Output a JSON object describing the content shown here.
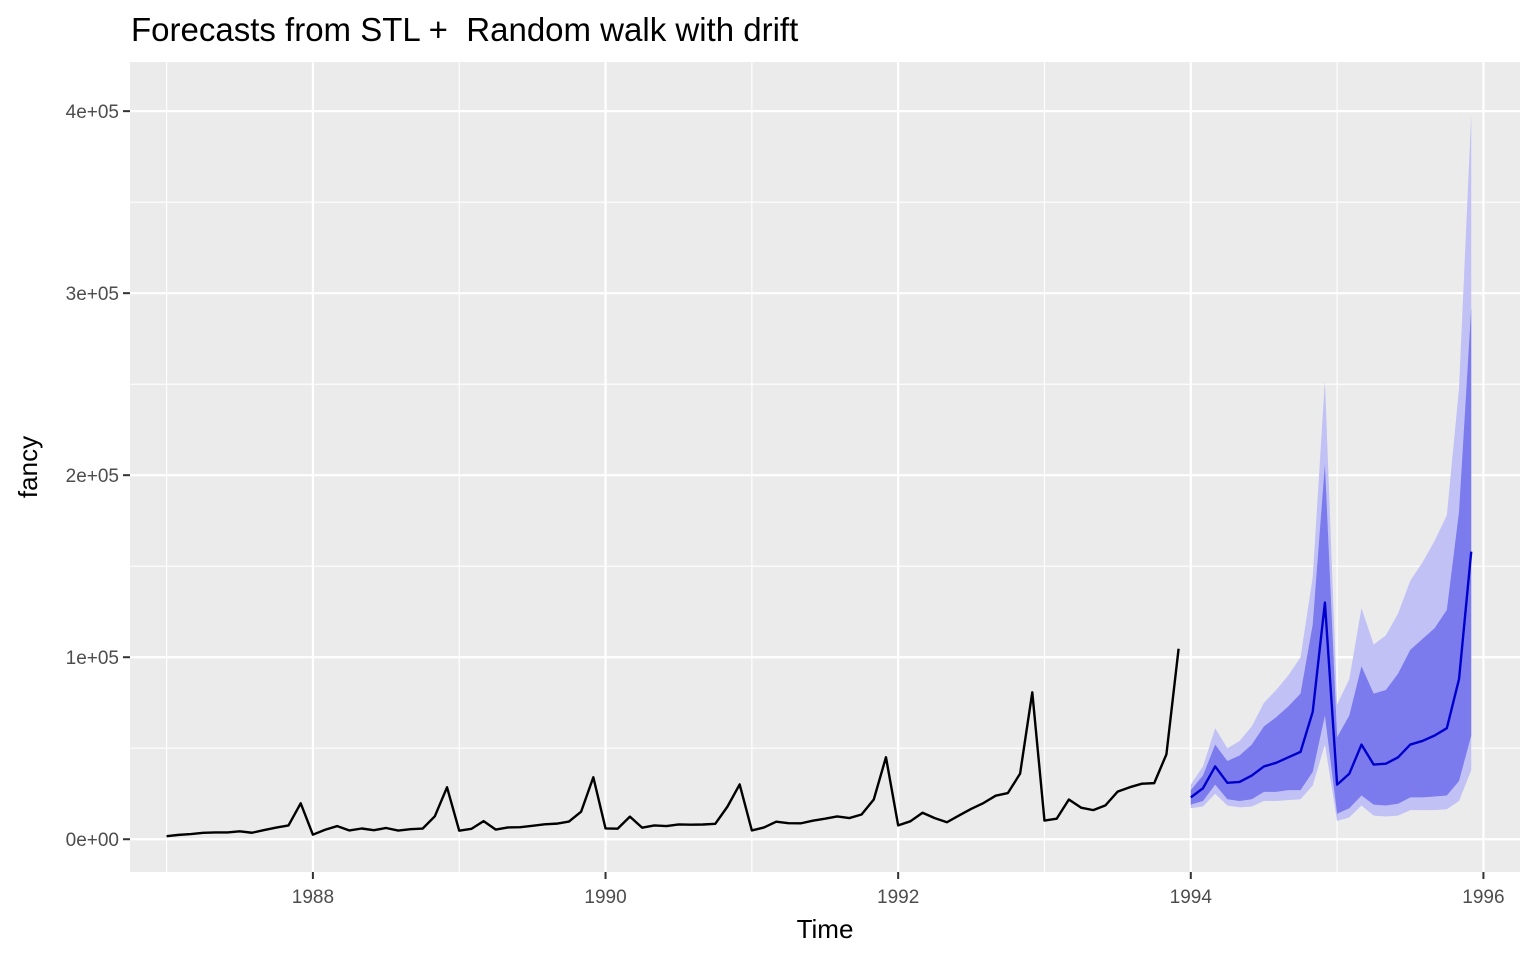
{
  "chart_data": {
    "type": "line",
    "title": "Forecasts from STL +  Random walk with drift",
    "xlabel": "Time",
    "ylabel": "fancy",
    "xlim": [
      1986.75,
      1996.25
    ],
    "ylim": [
      -18000,
      427000
    ],
    "x_ticks": [
      {
        "value": 1988,
        "label": "1988"
      },
      {
        "value": 1990,
        "label": "1990"
      },
      {
        "value": 1992,
        "label": "1992"
      },
      {
        "value": 1994,
        "label": "1994"
      },
      {
        "value": 1996,
        "label": "1996"
      }
    ],
    "y_ticks": [
      {
        "value": 0,
        "label": "0e+00"
      },
      {
        "value": 100000,
        "label": "1e+05"
      },
      {
        "value": 200000,
        "label": "2e+05"
      },
      {
        "value": 300000,
        "label": "3e+05"
      },
      {
        "value": 400000,
        "label": "4e+05"
      }
    ],
    "grid": true,
    "legend": "none",
    "colors": {
      "background": "#ebebeb",
      "grid": "#ffffff",
      "observed": "#000000",
      "forecast": "#0000cc",
      "band80": "#7b7bee",
      "band95": "#c1c1f5"
    },
    "observed": {
      "start": 1987.0,
      "frequency": 12,
      "values": [
        1664,
        2398,
        2840,
        3547,
        3753,
        3714,
        4350,
        3566,
        5022,
        6423,
        7600,
        19756,
        2499,
        5198,
        7225,
        4806,
        5900,
        4951,
        6179,
        4752,
        5496,
        5835,
        12600,
        28542,
        4717,
        5702,
        9957,
        5304,
        6492,
        6630,
        7349,
        8176,
        8573,
        9690,
        15151,
        34061,
        5921,
        5814,
        12421,
        6369,
        7609,
        7224,
        8121,
        7979,
        8093,
        8476,
        17914,
        30114,
        4827,
        6470,
        9638,
        8821,
        8722,
        10209,
        11276,
        12552,
        11637,
        13607,
        21823,
        45060,
        7615,
        9849,
        14558,
        11587,
        9332,
        13082,
        16732,
        19889,
        23933,
        25391,
        36024,
        80722,
        10243,
        11267,
        21826,
        17357,
        15997,
        18601,
        26155,
        28586,
        30505,
        30821,
        46634,
        104661
      ]
    },
    "forecast": {
      "start": 1994.0,
      "frequency": 12,
      "mean": [
        23000,
        28000,
        40000,
        31000,
        31500,
        35000,
        40000,
        42000,
        45000,
        48000,
        70000,
        130000,
        30000,
        36000,
        52000,
        41000,
        41500,
        45000,
        52000,
        54000,
        57000,
        61000,
        88000,
        158000
      ],
      "lo80": [
        19000,
        21000,
        30000,
        22000,
        21000,
        22000,
        26000,
        26000,
        27000,
        27000,
        37000,
        68000,
        14000,
        17000,
        24000,
        19000,
        18500,
        19500,
        23000,
        23000,
        23500,
        24000,
        32000,
        57000
      ],
      "hi80": [
        27000,
        35000,
        52000,
        43000,
        46000,
        52000,
        62000,
        67000,
        73000,
        80000,
        118000,
        206000,
        56000,
        68000,
        95000,
        80000,
        82000,
        91000,
        104000,
        110000,
        116000,
        126000,
        180000,
        292000
      ],
      "lo95": [
        17000,
        18000,
        25000,
        18500,
        17500,
        18000,
        21000,
        21000,
        21500,
        22000,
        29500,
        52000,
        10000,
        12000,
        18500,
        13000,
        12500,
        13000,
        16000,
        16000,
        16000,
        16500,
        21000,
        38000
      ],
      "hi95": [
        30000,
        40000,
        61000,
        50000,
        54000,
        62000,
        75000,
        82000,
        90000,
        100000,
        144000,
        252000,
        74000,
        88000,
        127000,
        107000,
        112000,
        124000,
        142000,
        152000,
        164000,
        178000,
        248000,
        398000
      ]
    }
  }
}
